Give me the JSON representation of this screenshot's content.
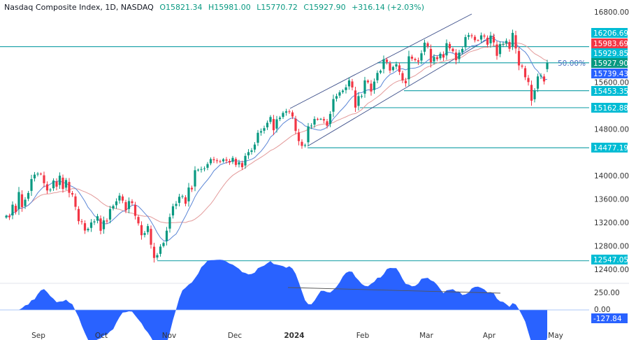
{
  "header": {
    "symbol": "Nasdaq Composite Index, 1D, NASDAQ",
    "open": "O15821.34",
    "high": "H15981.00",
    "low": "L15770.72",
    "close": "C15927.90",
    "change": "+316.14 (+2.03%)"
  },
  "chart_data": {
    "type": "candlestick",
    "title": "Nasdaq Composite Index, 1D, NASDAQ",
    "ylim": [
      12400,
      16800
    ],
    "y_ticks": [
      "16800.00",
      "15600.00",
      "14800.00",
      "14000.00",
      "13600.00",
      "13200.00",
      "12800.00",
      "12400.00"
    ],
    "x_ticks": [
      "Sep",
      "Oct",
      "Nov",
      "Dec",
      "2024",
      "Feb",
      "Mar",
      "Apr",
      "May"
    ],
    "period": "2023-08-17 to 2024-04-26, daily",
    "closes": [
      13316,
      13290,
      13505,
      13381,
      13721,
      13464,
      13590,
      13705,
      13943,
      14019,
      14035,
      14031,
      13872,
      13748,
      13762,
      13918,
      13813,
      14001,
      13773,
      13926,
      13708,
      13678,
      13469,
      13223,
      13211,
      13063,
      13092,
      13201,
      13219,
      13307,
      13059,
      13236,
      13219,
      13431,
      13484,
      13562,
      13659,
      13574,
      13407,
      13567,
      13533,
      13314,
      13186,
      12983,
      13019,
      13139,
      12821,
      12595,
      12643,
      12789,
      12851,
      13061,
      13294,
      13478,
      13518,
      13640,
      13650,
      13521,
      13798,
      13767,
      14094,
      14103,
      14113,
      14125,
      14199,
      14284,
      14265,
      14250,
      14241,
      14281,
      14258,
      14226,
      14305,
      14185,
      14229,
      14146,
      14339,
      14403,
      14432,
      14533,
      14734,
      14761,
      14813,
      14905,
      15003,
      14777,
      14964,
      14992,
      15074,
      15100,
      15095,
      15011,
      14766,
      14592,
      14510,
      14524,
      14843,
      14857,
      14970,
      14969,
      14972,
      14944,
      14855,
      15056,
      15310,
      15360,
      15425,
      15455,
      15510,
      15629,
      15509,
      15164,
      15361,
      15362,
      15629,
      15598,
      15439,
      15609,
      15757,
      15794,
      15990,
      15943,
      15797,
      15859,
      15906,
      15775,
      15630,
      15580,
      16041,
      16000,
      15976,
      15947,
      16092,
      16274,
      16207,
      15939,
      16031,
      15993,
      16085,
      16019,
      16265,
      16177,
      16128,
      15973,
      16103,
      16166,
      16369,
      16402,
      16385,
      16316,
      16315,
      16399,
      16379,
      16240,
      16396,
      16278,
      16049,
      16249,
      16253,
      16306,
      16170,
      16442,
      16175,
      15885,
      15865,
      15683,
      15601,
      15282,
      15451,
      15697,
      15712,
      15611,
      15927.9
    ],
    "last_candle": {
      "open": 15821.34,
      "high": 15981.0,
      "low": 15770.72,
      "close": 15927.9
    },
    "levels": [
      {
        "value": 16206.69,
        "label": "16206.69",
        "color": "#00bcd4"
      },
      {
        "value": 15929.85,
        "label": "15929.85",
        "color": "#00bcd4",
        "annotation": "50.00%"
      },
      {
        "value": 15453.35,
        "label": "15453.35",
        "color": "#00bcd4"
      },
      {
        "value": 15162.88,
        "label": "15162.88",
        "color": "#00bcd4"
      },
      {
        "value": 14477.19,
        "label": "14477.19",
        "color": "#00bcd4"
      },
      {
        "value": 12547.05,
        "label": "12547.05",
        "color": "#00bcd4"
      }
    ],
    "price_labels": [
      {
        "label": "15983.69",
        "color": "#f23645"
      },
      {
        "label": "15927.90",
        "color": "#089981"
      },
      {
        "label": "15739.43",
        "color": "#2962ff"
      }
    ],
    "oscillator": {
      "y_ticks": [
        "250.00",
        "0.00"
      ],
      "current": "-127.84",
      "color": "#2962ff"
    },
    "colors": {
      "up": "#089981",
      "down": "#f23645",
      "fast_ma": "#5b86d6",
      "slow_ma": "#e39a9a",
      "levels": "#26a6ad"
    }
  }
}
